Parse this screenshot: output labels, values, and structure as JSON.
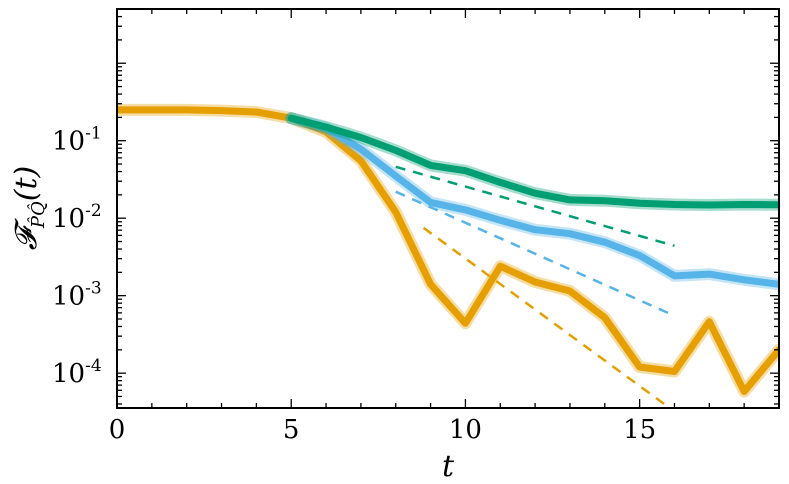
{
  "chart_data": {
    "type": "line",
    "xlabel": "t",
    "ylabel": "𝓕",
    "ylabel_sub": "P̂Q̂",
    "ylabel_arg": "(t)",
    "xlim": [
      0,
      19
    ],
    "ylim_log10": [
      -4.45,
      0.7
    ],
    "yscale": "log",
    "x_ticks": [
      0,
      5,
      10,
      15
    ],
    "x_tick_labels": [
      "0",
      "5",
      "10",
      "15"
    ],
    "y_ticks_log10": [
      -1,
      -2,
      -3,
      -4
    ],
    "y_tick_labels": [
      {
        "base": "10",
        "exp": "-1"
      },
      {
        "base": "10",
        "exp": "-2"
      },
      {
        "base": "10",
        "exp": "-3"
      },
      {
        "base": "10",
        "exp": "-4"
      }
    ],
    "grid": false,
    "series": [
      {
        "color": "#e69f00",
        "style": "solid",
        "x": [
          0,
          1,
          2,
          3,
          4,
          5,
          6,
          7,
          8,
          9,
          10,
          11,
          12,
          13,
          14,
          15,
          16,
          17,
          18,
          19
        ],
        "y": [
          0.25,
          0.25,
          0.25,
          0.245,
          0.235,
          0.195,
          0.13,
          0.055,
          0.012,
          0.0014,
          0.00044,
          0.0024,
          0.0015,
          0.00115,
          0.00052,
          0.00012,
          0.000105,
          0.00046,
          5.8e-05,
          0.0002
        ]
      },
      {
        "color": "#56b4e9",
        "style": "solid",
        "x": [
          5,
          6,
          7,
          8,
          9,
          10,
          11,
          12,
          13,
          14,
          15,
          16,
          17,
          18,
          19
        ],
        "y": [
          0.195,
          0.145,
          0.078,
          0.035,
          0.016,
          0.0128,
          0.0094,
          0.0071,
          0.0063,
          0.0049,
          0.0033,
          0.0018,
          0.0019,
          0.0016,
          0.0014
        ]
      },
      {
        "color": "#009e73",
        "style": "solid",
        "x": [
          5,
          6,
          7,
          8,
          9,
          10,
          11,
          12,
          13,
          14,
          15,
          16,
          17,
          18,
          19
        ],
        "y": [
          0.195,
          0.15,
          0.11,
          0.075,
          0.048,
          0.041,
          0.029,
          0.021,
          0.0172,
          0.0168,
          0.0156,
          0.015,
          0.0148,
          0.015,
          0.0149
        ]
      },
      {
        "color": "#009e73",
        "style": "dashed",
        "x": [
          8,
          16
        ],
        "y": [
          0.046,
          0.0044
        ]
      },
      {
        "color": "#56b4e9",
        "style": "dashed",
        "x": [
          8,
          16
        ],
        "y": [
          0.022,
          0.00055
        ]
      },
      {
        "color": "#e69f00",
        "style": "dashed",
        "x": [
          8.8,
          16
        ],
        "y": [
          0.0075,
          3.2e-05
        ]
      }
    ]
  }
}
